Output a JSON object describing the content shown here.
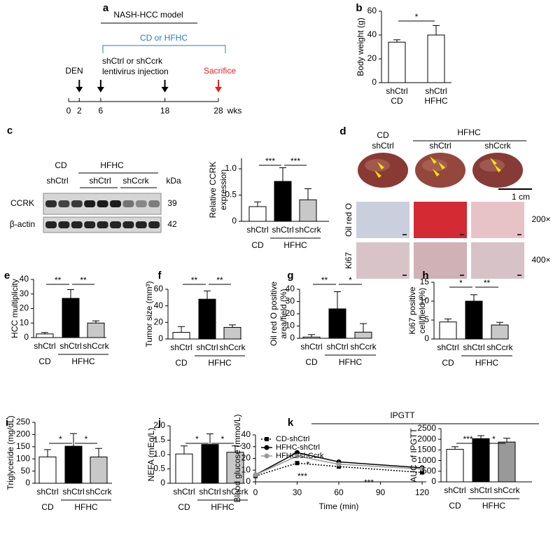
{
  "figure": {
    "timeline": {
      "panel": "a",
      "model": "NASH-HCC model",
      "diet": "CD or HFHC",
      "injection": [
        "shCtrl or shCcrk",
        "lentivirus injection"
      ],
      "den": "DEN",
      "sacrifice": "Sacrifice",
      "ticks": [
        0,
        2,
        6,
        18,
        28
      ],
      "unit": "wks"
    },
    "blot": {
      "panel": "c",
      "groups": [
        "CD",
        "HFHC"
      ],
      "lanes": [
        "shCtrl",
        "shCtrl",
        "shCcrk"
      ],
      "unit": "kDa",
      "rows": [
        {
          "name": "CCRK",
          "kda": 39
        },
        {
          "name": "β-actin",
          "kda": 42
        }
      ]
    },
    "images": {
      "panel": "d",
      "group": "HFHC",
      "columns": [
        [
          "CD",
          "shCtrl"
        ],
        [
          "shCtrl"
        ],
        [
          "shCcrk"
        ]
      ],
      "rows": [
        {
          "name": "Oil red O",
          "magnification": "200×"
        },
        {
          "name": "Ki67",
          "magnification": "400×"
        }
      ],
      "scale": "1 cm"
    }
  },
  "chart_data": [
    {
      "type": "bar",
      "panel": "b",
      "ylabel": "Body weight (g)",
      "categories": [
        "shCtrl",
        "shCtrl"
      ],
      "groups": [
        "CD",
        "HFHC"
      ],
      "values": [
        34,
        40
      ],
      "errors": [
        2,
        8
      ],
      "colors": [
        "#ffffff",
        "#ffffff"
      ],
      "ylim": [
        0,
        60
      ],
      "yticks": [
        0,
        20,
        40,
        60
      ],
      "significance": [
        "*"
      ]
    },
    {
      "type": "bar",
      "ylabel": [
        "Relative CCRK",
        "expression"
      ],
      "categories": [
        "shCtrl",
        "shCtrl",
        "shCcrk"
      ],
      "groups": [
        "CD",
        "HFHC"
      ],
      "values": [
        0.28,
        0.76,
        0.41
      ],
      "errors": [
        0.09,
        0.26,
        0.21
      ],
      "colors": [
        "#ffffff",
        "#000000",
        "#c8c8c8"
      ],
      "ylim": [
        0,
        1.2
      ],
      "yticks": [
        0,
        0.5,
        {
          "value": 1,
          "label": "1.0"
        }
      ],
      "significance": [
        "***",
        "***"
      ]
    },
    {
      "type": "bar",
      "panel": "e",
      "ylabel": "HCC multiplicity",
      "categories": [
        "shCtrl",
        "shCtrl",
        "shCcrk"
      ],
      "groups": [
        "CD",
        "HFHC"
      ],
      "values": [
        2.5,
        27,
        10
      ],
      "errors": [
        1,
        6,
        1.5
      ],
      "colors": [
        "#ffffff",
        "#000000",
        "#c8c8c8"
      ],
      "ylim": [
        0,
        40
      ],
      "yticks": [
        0,
        10,
        20,
        30,
        40
      ],
      "significance": [
        "**",
        "**"
      ]
    },
    {
      "type": "bar",
      "panel": "f",
      "ylabel": "Tumor size (mm³)",
      "categories": [
        "shCtrl",
        "shCtrl",
        "shCcrk"
      ],
      "groups": [
        "CD",
        "HFHC"
      ],
      "values": [
        8,
        48,
        14
      ],
      "errors": [
        7,
        10,
        3
      ],
      "colors": [
        "#ffffff",
        "#000000",
        "#c8c8c8"
      ],
      "ylim": [
        0,
        60
      ],
      "yticks": [
        0,
        20,
        40,
        60
      ],
      "significance": [
        "**",
        "**"
      ]
    },
    {
      "type": "bar",
      "panel": "g",
      "ylabel": [
        "Oil red O positive",
        "area/field (%)"
      ],
      "categories": [
        "shCtrl",
        "shCtrl",
        "shCcrk"
      ],
      "groups": [
        "CD",
        "HFHC"
      ],
      "values": [
        1,
        24,
        5
      ],
      "errors": [
        2,
        14,
        7
      ],
      "colors": [
        "#ffffff",
        "#000000",
        "#c8c8c8"
      ],
      "ylim": [
        0,
        40
      ],
      "yticks": [
        0,
        10,
        20,
        30,
        40
      ],
      "significance": [
        "**",
        "*"
      ]
    },
    {
      "type": "bar",
      "panel": "h",
      "ylabel": [
        "Ki67 positive",
        "cell/field (%)"
      ],
      "categories": [
        "shCtrl",
        "shCtrl",
        "shCcrk"
      ],
      "groups": [
        "CD",
        "HFHC"
      ],
      "values": [
        4.5,
        10,
        3.7
      ],
      "errors": [
        0.8,
        1.7,
        0.7
      ],
      "colors": [
        "#ffffff",
        "#000000",
        "#c8c8c8"
      ],
      "ylim": [
        0,
        15
      ],
      "yticks": [
        0,
        5,
        10,
        15
      ],
      "significance": [
        "*",
        "**"
      ]
    },
    {
      "type": "bar",
      "panel": "i",
      "ylabel": "Triglyceride (mg/dL)",
      "categories": [
        "shCtrl",
        "shCtrl",
        "shCcrk"
      ],
      "groups": [
        "CD",
        "HFHC"
      ],
      "values": [
        108,
        152,
        108
      ],
      "errors": [
        30,
        52,
        35
      ],
      "colors": [
        "#ffffff",
        "#000000",
        "#c8c8c8"
      ],
      "ylim": [
        0,
        250
      ],
      "yticks": [
        0,
        50,
        100,
        150,
        200,
        250
      ],
      "significance": [
        "*",
        "*"
      ]
    },
    {
      "type": "bar",
      "panel": "j",
      "ylabel": "NEFA (mEq/L)",
      "categories": [
        "shCtrl",
        "shCtrl",
        "shCcrk"
      ],
      "groups": [
        "CD",
        "HFHC"
      ],
      "values": [
        1.02,
        1.35,
        1.08
      ],
      "errors": [
        0.28,
        0.37,
        0.22
      ],
      "colors": [
        "#ffffff",
        "#000000",
        "#c8c8c8"
      ],
      "ylim": [
        0,
        2
      ],
      "yticks": [
        0,
        0.5,
        {
          "value": 1,
          "label": "1.0"
        },
        1.5,
        {
          "value": 2,
          "label": "2.0"
        }
      ],
      "significance": [
        "*",
        "*"
      ]
    },
    {
      "type": "line",
      "panel": "k",
      "title": "IPGTT",
      "ylabel": "Blood glucose (mmol/L)",
      "xlabel": "Time (min)",
      "x": [
        0,
        30,
        60,
        120
      ],
      "xlim": [
        0,
        120
      ],
      "xticks": [
        0,
        30,
        60,
        90,
        120
      ],
      "ylim": [
        0,
        40
      ],
      "yticks": [
        0,
        10,
        20,
        30,
        40
      ],
      "legend": "top-left",
      "series": [
        {
          "name": "CD-shCtrl",
          "color": "#000000",
          "marker": "square",
          "dash": "dotted",
          "values": [
            5,
            16,
            13,
            8
          ]
        },
        {
          "name": "HFHC-shCtrl",
          "color": "#000000",
          "marker": "circle",
          "dash": "solid",
          "values": [
            6,
            25,
            17,
            12
          ]
        },
        {
          "name": "HFHC-shCcrk",
          "color": "#999999",
          "marker": "circle",
          "dash": "solid",
          "values": [
            6,
            22,
            15,
            11
          ]
        }
      ],
      "annotations": [
        "*",
        "***",
        "***"
      ]
    },
    {
      "type": "bar",
      "ylabel": "AUC of IPGTT",
      "categories": [
        "shCtrl",
        "shCtrl",
        "shCcrk"
      ],
      "groups": [
        "CD",
        "HFHC"
      ],
      "values": [
        1530,
        2030,
        1870
      ],
      "errors": [
        120,
        140,
        180
      ],
      "colors": [
        "#ffffff",
        "#000000",
        "#999999"
      ],
      "ylim": [
        0,
        2500
      ],
      "yticks": [
        0,
        500,
        1000,
        1500,
        2000,
        2500
      ],
      "significance": [
        "***",
        "*"
      ]
    }
  ]
}
